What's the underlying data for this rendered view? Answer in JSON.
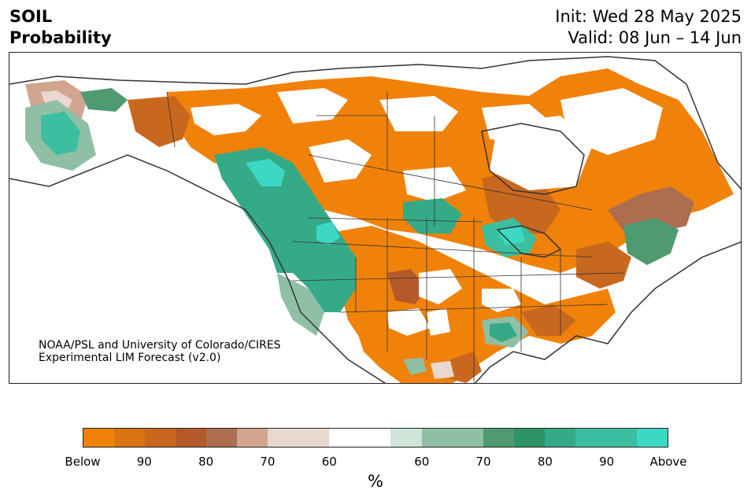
{
  "title": {
    "line1": "SOIL",
    "line2": "Probability"
  },
  "init": {
    "label": "Init: Wed 28 May 2025",
    "valid": "Valid: 08 Jun – 14 Jun"
  },
  "credit": {
    "line1": "NOAA/PSL and University of Colorado/CIRES",
    "line2": "Experimental LIM Forecast (v2.0)"
  },
  "colorbar": {
    "units": "%",
    "colors": [
      "#f0820a",
      "#d97412",
      "#c8681f",
      "#b45a2a",
      "#ad6e50",
      "#d2a590",
      "#e8d8d0",
      "#e8d8d0",
      "#ffffff",
      "#ffffff",
      "#cfe5da",
      "#8fbfa5",
      "#8fbfa5",
      "#4f9a70",
      "#2e9467",
      "#35aa86",
      "#3bbfa0",
      "#3bbfa0",
      "#3dd8c3"
    ],
    "tick_labels": [
      "Below",
      "90",
      "80",
      "70",
      "60",
      "60",
      "70",
      "80",
      "90",
      "Above"
    ]
  },
  "map": {
    "type": "probability-map",
    "region": "North America"
  }
}
